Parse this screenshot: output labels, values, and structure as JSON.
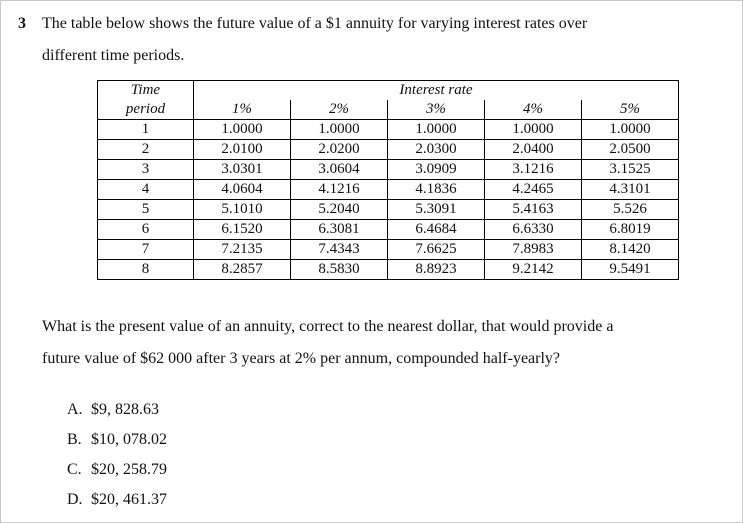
{
  "question": {
    "number": "3",
    "intro_line1": "The table below shows the future value of a $1 annuity for varying interest rates over",
    "intro_line2": "different time periods.",
    "prompt_line1": "What is the present value of an annuity, correct to the nearest dollar, that would provide a",
    "prompt_line2": "future value of $62 000 after 3 years at 2% per annum, compounded half-yearly?"
  },
  "table": {
    "corner_top": "Time",
    "corner_bottom": "period",
    "group_header": "Interest rate",
    "rates": [
      "1%",
      "2%",
      "3%",
      "4%",
      "5%"
    ],
    "rows": [
      [
        "1",
        "1.0000",
        "1.0000",
        "1.0000",
        "1.0000",
        "1.0000"
      ],
      [
        "2",
        "2.0100",
        "2.0200",
        "2.0300",
        "2.0400",
        "2.0500"
      ],
      [
        "3",
        "3.0301",
        "3.0604",
        "3.0909",
        "3.1216",
        "3.1525"
      ],
      [
        "4",
        "4.0604",
        "4.1216",
        "4.1836",
        "4.2465",
        "4.3101"
      ],
      [
        "5",
        "5.1010",
        "5.2040",
        "5.3091",
        "5.4163",
        "5.526"
      ],
      [
        "6",
        "6.1520",
        "6.3081",
        "6.4684",
        "6.6330",
        "6.8019"
      ],
      [
        "7",
        "7.2135",
        "7.4343",
        "7.6625",
        "7.8983",
        "8.1420"
      ],
      [
        "8",
        "8.2857",
        "8.5830",
        "8.8923",
        "9.2142",
        "9.5491"
      ]
    ]
  },
  "options": [
    {
      "letter": "A.",
      "text": "$9, 828.63"
    },
    {
      "letter": "B.",
      "text": "$10, 078.02"
    },
    {
      "letter": "C.",
      "text": "$20, 258.79"
    },
    {
      "letter": "D.",
      "text": "$20, 461.37"
    }
  ]
}
